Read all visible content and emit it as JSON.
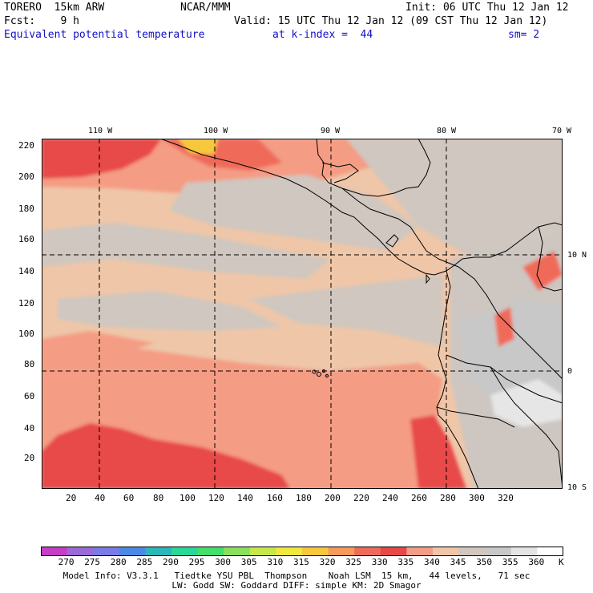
{
  "header": {
    "model": "TORERO  15km ARW",
    "center": "NCAR/MMM",
    "init": "Init: 06 UTC Thu 12 Jan 12",
    "fcst": "Fcst:    9 h",
    "valid": "Valid: 15 UTC Thu 12 Jan 12 (09 CST Thu 12 Jan 12)",
    "field": "Equivalent potential temperature",
    "level": "at k-index =  44",
    "smooth": "sm= 2"
  },
  "map": {
    "lon_labels": [
      "110 W",
      "100 W",
      "90 W",
      "80 W",
      "70 W"
    ],
    "lat_labels": [
      "10 N",
      "0",
      "10 S"
    ],
    "x_ticks": [
      "20",
      "40",
      "60",
      "80",
      "100",
      "120",
      "140",
      "160",
      "180",
      "200",
      "220",
      "240",
      "260",
      "280",
      "300",
      "320"
    ],
    "y_ticks": [
      "20",
      "40",
      "60",
      "80",
      "100",
      "120",
      "140",
      "160",
      "180",
      "200",
      "220"
    ],
    "colors": {
      "land_outline": "#000000",
      "grid": "#000000"
    }
  },
  "colorbar": {
    "labels": [
      "270",
      "275",
      "280",
      "285",
      "290",
      "295",
      "300",
      "305",
      "310",
      "315",
      "320",
      "325",
      "330",
      "335",
      "340",
      "345",
      "350",
      "355",
      "360"
    ],
    "unit": "K",
    "colors": [
      "#c83cc8",
      "#9a6ad8",
      "#7a7ae8",
      "#4a8ae6",
      "#28b8b8",
      "#28d898",
      "#40e06a",
      "#8ae05a",
      "#c8e848",
      "#f0e83a",
      "#f8c83a",
      "#f89a5a",
      "#f06a5a",
      "#e84848",
      "#f49c84",
      "#efc6a8",
      "#cfc7c0",
      "#c8c8c8",
      "#e4e4e4",
      "#ffffff"
    ]
  },
  "footer": {
    "line1": "Model Info: V3.3.1   Tiedtke YSU PBL  Thompson    Noah LSM  15 km,   44 levels,   71 sec",
    "line2": "LW: Godd SW: Goddard DIFF: simple KM: 2D Smagor"
  }
}
